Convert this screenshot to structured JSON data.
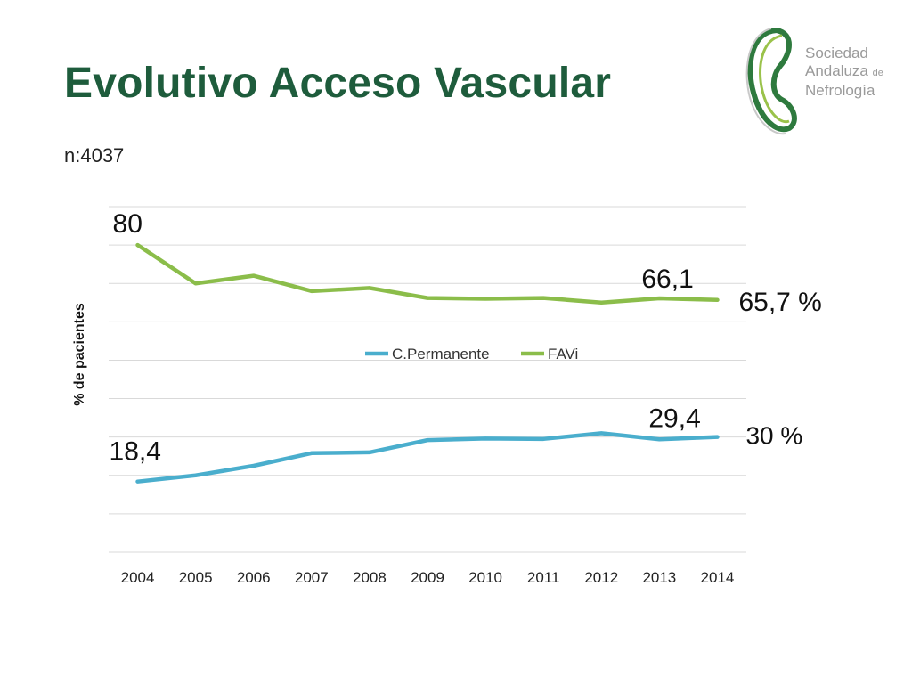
{
  "slide": {
    "title": "Evolutivo Acceso Vascular",
    "sample_size": "n:4037"
  },
  "logo": {
    "name": "logo-sociedad-andaluza-de-nefrologia",
    "line1": "Sociedad",
    "line2": "Andaluza",
    "line2_suffix": "de",
    "line3": "Nefrología"
  },
  "colors": {
    "title": "#1e5c3c",
    "favi": "#8bbd4a",
    "cpermanente": "#4aaecd",
    "grid": "#d9d9d9"
  },
  "chart_data": {
    "type": "line",
    "ylabel": "% de pacientes",
    "xlabel": "",
    "ylim": [
      0,
      90
    ],
    "grid": true,
    "legend_position": "center",
    "categories": [
      "2004",
      "2005",
      "2006",
      "2007",
      "2008",
      "2009",
      "2010",
      "2011",
      "2012",
      "2013",
      "2014"
    ],
    "series": [
      {
        "name": "C.Permanente",
        "color": "#4aaecd",
        "values": [
          18.4,
          20,
          22.5,
          25.8,
          26,
          29.2,
          29.6,
          29.5,
          31,
          29.4,
          30
        ]
      },
      {
        "name": "FAVi",
        "color": "#8bbd4a",
        "values": [
          80,
          70,
          72,
          68,
          68.8,
          66.2,
          66,
          66.2,
          65,
          66.1,
          65.7
        ]
      }
    ],
    "annotations": [
      {
        "series": 1,
        "index": 0,
        "text": "80"
      },
      {
        "series": 1,
        "index": 9,
        "text": "66,1"
      },
      {
        "series": 1,
        "index": 10,
        "text": "65,7 %"
      },
      {
        "series": 0,
        "index": 0,
        "text": "18,4"
      },
      {
        "series": 0,
        "index": 9,
        "text": "29,4"
      },
      {
        "series": 0,
        "index": 10,
        "text": "30 %"
      }
    ]
  }
}
